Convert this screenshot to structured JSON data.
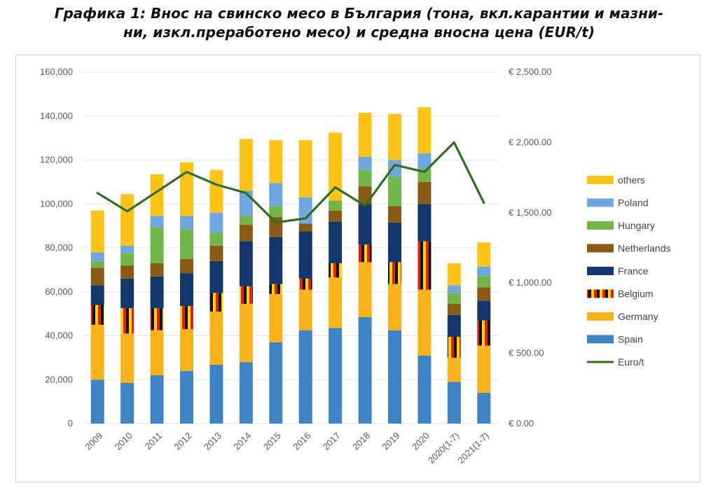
{
  "title_lines": [
    "Графика 1: Внос на свинско месо в България (тона, вкл.карантии и мазни-",
    "ни, изкл.преработено месо) и средна вносна цена (EUR/t)"
  ],
  "chart_data": {
    "type": "bar",
    "stacked": true,
    "categories": [
      "2009",
      "2010",
      "2011",
      "2012",
      "2013",
      "2014",
      "2015",
      "2016",
      "2017",
      "2018",
      "2019",
      "2020",
      "2020(1-7)",
      "2021(1-7)"
    ],
    "series": [
      {
        "name": "Spain",
        "color": "#3e84c5",
        "values": [
          20000,
          18500,
          22000,
          24000,
          26800,
          28000,
          37000,
          42500,
          43500,
          48500,
          42500,
          31000,
          19000,
          14000
        ]
      },
      {
        "name": "Germany",
        "color": "#f7b21c",
        "values": [
          25000,
          22500,
          20500,
          19000,
          24200,
          26500,
          22000,
          18500,
          23000,
          25000,
          21000,
          30000,
          11000,
          21500
        ]
      },
      {
        "name": "Belgium",
        "color": "#e01f1f",
        "pattern": "belgium-flag",
        "values": [
          9000,
          11500,
          10000,
          10500,
          8500,
          8000,
          4500,
          5000,
          6500,
          8000,
          10000,
          22000,
          9500,
          11500
        ]
      },
      {
        "name": "France",
        "color": "#14376b",
        "values": [
          9000,
          13500,
          14500,
          15000,
          14500,
          20500,
          21500,
          21500,
          19000,
          18500,
          18000,
          17000,
          10000,
          9000
        ]
      },
      {
        "name": "Netherlands",
        "color": "#8a5a17",
        "values": [
          8000,
          6000,
          6000,
          6500,
          7000,
          7500,
          9000,
          3500,
          5000,
          8000,
          7500,
          10000,
          5000,
          6000
        ]
      },
      {
        "name": "Hungary",
        "color": "#72b64a",
        "values": [
          3000,
          5500,
          16500,
          13500,
          6000,
          4000,
          5000,
          0,
          4500,
          7500,
          13500,
          6000,
          5000,
          5000
        ]
      },
      {
        "name": "Poland",
        "color": "#6fa6dd",
        "values": [
          4000,
          3500,
          5000,
          6000,
          9000,
          11500,
          10500,
          12000,
          0,
          6000,
          7500,
          7000,
          3500,
          4500
        ]
      },
      {
        "name": "others",
        "color": "#fcc419",
        "values": [
          19000,
          23500,
          19000,
          24500,
          19500,
          23500,
          19500,
          26000,
          31000,
          20000,
          21000,
          21000,
          10000,
          11000
        ]
      }
    ],
    "line_series": {
      "name": "Euro/t",
      "color": "#2f6e1f",
      "axis": "right",
      "values": [
        1640,
        1510,
        1650,
        1790,
        1700,
        1640,
        1430,
        1460,
        1680,
        1550,
        1840,
        1790,
        2000,
        1570
      ]
    },
    "left_axis": {
      "ylim": [
        0,
        160000
      ],
      "ticks": [
        "0",
        "20,000",
        "40,000",
        "60,000",
        "80,000",
        "100,000",
        "120,000",
        "140,000",
        "160,000"
      ]
    },
    "right_axis": {
      "ylim": [
        0,
        2500
      ],
      "ticks": [
        "€ 0.00",
        "€ 500.00",
        "€ 1,000.00",
        "€ 1,500.00",
        "€ 2,000.00",
        "€ 2,500.00"
      ]
    },
    "legend_order": [
      "others",
      "Poland",
      "Hungary",
      "Netherlands",
      "France",
      "Belgium",
      "Germany",
      "Spain",
      "Euro/t"
    ],
    "legend_position": "right",
    "grid": "horizontal"
  }
}
